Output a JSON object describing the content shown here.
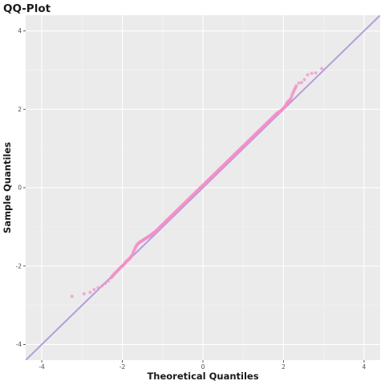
{
  "chart_data": {
    "type": "scatter",
    "title": "QQ-Plot",
    "xlabel": "Theoretical Quantiles",
    "ylabel": "Sample Quantiles",
    "xlim": [
      -4.4,
      4.4
    ],
    "ylim": [
      -4.4,
      4.4
    ],
    "x_ticks": [
      -4,
      -2,
      0,
      2,
      4
    ],
    "y_ticks": [
      -4,
      -2,
      0,
      2,
      4
    ],
    "x_tick_labels": [
      "-4",
      "-2",
      "0",
      "2",
      "4"
    ],
    "y_tick_labels": [
      "-4",
      "-2",
      "0",
      "2",
      "4"
    ],
    "grid": true,
    "reference_line": {
      "slope": 1,
      "intercept": 0,
      "color": "#b39ddb"
    },
    "point_color": "#f48fc7",
    "panel_background": "#ebebeb",
    "series": [
      {
        "x": [
          -3.25,
          -2.95,
          -2.8,
          -2.7,
          -2.6,
          -2.5,
          -2.42,
          -2.35,
          -2.28,
          -2.2,
          -2.12,
          -2.05,
          -1.97,
          -1.9,
          -1.83,
          -1.76,
          -1.7,
          -1.64,
          -1.58,
          -1.52,
          -1.46,
          -1.4,
          -1.34,
          -1.28,
          -1.22,
          -1.16,
          -1.1,
          -1.04,
          -0.98,
          -0.92,
          -0.86,
          -0.8,
          -0.74,
          -0.68,
          -0.62,
          -0.56,
          -0.5,
          -0.44,
          -0.38,
          -0.32,
          -0.26,
          -0.2,
          -0.14,
          -0.08,
          -0.02,
          0.04,
          0.1,
          0.16,
          0.22,
          0.28,
          0.34,
          0.4,
          0.46,
          0.52,
          0.58,
          0.64,
          0.7,
          0.76,
          0.82,
          0.88,
          0.94,
          1.0,
          1.06,
          1.12,
          1.18,
          1.24,
          1.3,
          1.36,
          1.42,
          1.48,
          1.54,
          1.6,
          1.66,
          1.72,
          1.78,
          1.84,
          1.9,
          1.96,
          2.02,
          2.08,
          2.12,
          2.17,
          2.22,
          2.27,
          2.32,
          2.38,
          2.45,
          2.52,
          2.6,
          2.7,
          2.8,
          2.95
        ],
        "y": [
          -2.77,
          -2.71,
          -2.67,
          -2.6,
          -2.55,
          -2.5,
          -2.44,
          -2.38,
          -2.3,
          -2.2,
          -2.12,
          -2.04,
          -1.97,
          -1.88,
          -1.82,
          -1.73,
          -1.58,
          -1.46,
          -1.4,
          -1.36,
          -1.32,
          -1.28,
          -1.24,
          -1.2,
          -1.15,
          -1.1,
          -1.04,
          -0.98,
          -0.92,
          -0.86,
          -0.8,
          -0.74,
          -0.68,
          -0.62,
          -0.56,
          -0.5,
          -0.44,
          -0.38,
          -0.32,
          -0.26,
          -0.2,
          -0.14,
          -0.08,
          -0.02,
          0.04,
          0.1,
          0.16,
          0.22,
          0.28,
          0.34,
          0.4,
          0.46,
          0.52,
          0.58,
          0.64,
          0.7,
          0.76,
          0.82,
          0.88,
          0.94,
          1.0,
          1.06,
          1.12,
          1.18,
          1.24,
          1.3,
          1.36,
          1.42,
          1.48,
          1.54,
          1.6,
          1.66,
          1.72,
          1.78,
          1.84,
          1.9,
          1.94,
          1.98,
          2.05,
          2.15,
          2.2,
          2.25,
          2.38,
          2.5,
          2.6,
          2.67,
          2.68,
          2.76,
          2.88,
          2.92,
          2.93,
          3.04
        ]
      }
    ]
  }
}
